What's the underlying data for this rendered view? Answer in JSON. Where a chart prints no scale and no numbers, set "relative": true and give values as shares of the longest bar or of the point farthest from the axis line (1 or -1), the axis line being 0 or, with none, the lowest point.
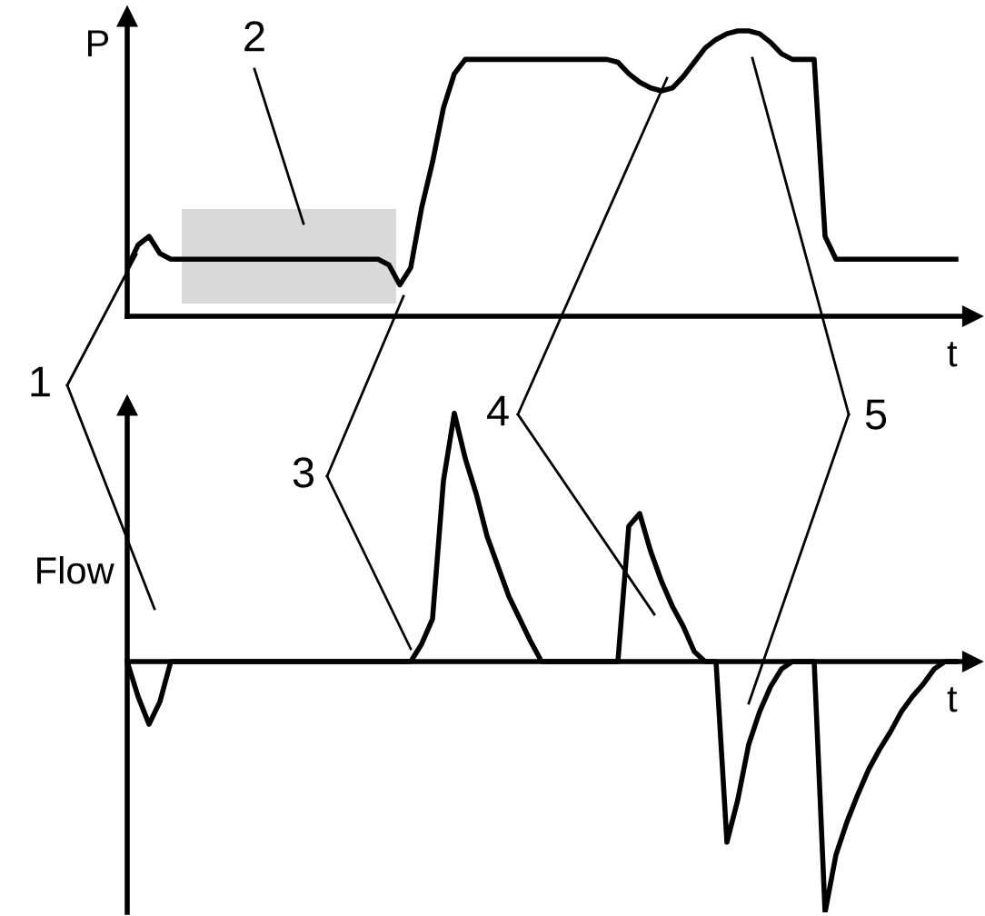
{
  "chart_data": [
    {
      "type": "line",
      "relative": true,
      "ylabel": "P",
      "xlabel": "t",
      "line_style": "solid",
      "categories": [
        null,
        null,
        null,
        null,
        null,
        null,
        null,
        null,
        null,
        null,
        null,
        null,
        null,
        null,
        null,
        null,
        null,
        null,
        null,
        null,
        null,
        null,
        null,
        null,
        null,
        null,
        null,
        null,
        null,
        null,
        null,
        null,
        null,
        null,
        null,
        null,
        null,
        null,
        null,
        null,
        null,
        null,
        null,
        null,
        null,
        null,
        null,
        null,
        null,
        null,
        null,
        null,
        null,
        null,
        null,
        null,
        null,
        null,
        null,
        null,
        null,
        null,
        null,
        null,
        null,
        null,
        null,
        null,
        null,
        null,
        null,
        null,
        null,
        null,
        null,
        null,
        null
      ],
      "series": [
        {
          "color": "#000000",
          "values": [
            0.17,
            0.25,
            0.28,
            0.22,
            0.2,
            0.2,
            0.2,
            0.2,
            0.2,
            0.2,
            0.2,
            0.2,
            0.2,
            0.2,
            0.2,
            0.2,
            0.2,
            0.2,
            0.2,
            0.2,
            0.2,
            0.2,
            0.2,
            0.2,
            0.18,
            0.11,
            0.17,
            0.38,
            0.54,
            0.73,
            0.85,
            0.9,
            0.9,
            0.9,
            0.9,
            0.9,
            0.9,
            0.9,
            0.9,
            0.9,
            0.9,
            0.9,
            0.9,
            0.9,
            0.9,
            0.89,
            0.85,
            0.82,
            0.8,
            0.79,
            0.8,
            0.84,
            0.89,
            0.94,
            0.97,
            0.99,
            1.0,
            1.0,
            0.99,
            0.96,
            0.92,
            0.9,
            0.9,
            0.9,
            0.28,
            0.2,
            0.2,
            0.2,
            0.2,
            0.2,
            0.2,
            0.2,
            0.2,
            0.2,
            0.2,
            0.2,
            0.2
          ]
        }
      ],
      "annotations": [
        "1",
        "2",
        "3",
        "4",
        "5"
      ]
    },
    {
      "type": "line",
      "relative": true,
      "ylabel": "Flow",
      "xlabel": "t",
      "line_style": "solid",
      "categories": [
        null,
        null,
        null,
        null,
        null,
        null,
        null,
        null,
        null,
        null,
        null,
        null,
        null,
        null,
        null,
        null,
        null,
        null,
        null,
        null,
        null,
        null,
        null,
        null,
        null,
        null,
        null,
        null,
        null,
        null,
        null,
        null,
        null,
        null,
        null,
        null,
        null,
        null,
        null,
        null,
        null,
        null,
        null,
        null,
        null,
        null,
        null,
        null,
        null,
        null,
        null,
        null,
        null,
        null,
        null,
        null,
        null,
        null,
        null,
        null,
        null,
        null,
        null,
        null,
        null,
        null,
        null,
        null,
        null,
        null,
        null,
        null,
        null,
        null,
        null,
        null,
        null
      ],
      "series": [
        {
          "color": "#000000",
          "values": [
            0,
            -0.14,
            -0.25,
            -0.16,
            0,
            0,
            0,
            0,
            0,
            0,
            0,
            0,
            0,
            0,
            0,
            0,
            0,
            0,
            0,
            0,
            0,
            0,
            0,
            0,
            0,
            0,
            0,
            0.07,
            0.17,
            0.72,
            0.99,
            0.81,
            0.67,
            0.5,
            0.38,
            0.26,
            0.17,
            0.08,
            0,
            0,
            0,
            0,
            0,
            0,
            0,
            0,
            0.54,
            0.59,
            0.44,
            0.32,
            0.22,
            0.14,
            0.04,
            0,
            0,
            -0.72,
            -0.55,
            -0.33,
            -0.2,
            -0.1,
            -0.03,
            0,
            0,
            0,
            -1.0,
            -0.77,
            -0.64,
            -0.53,
            -0.43,
            -0.35,
            -0.28,
            -0.2,
            -0.14,
            -0.09,
            -0.03,
            0,
            0
          ]
        }
      ]
    }
  ]
}
